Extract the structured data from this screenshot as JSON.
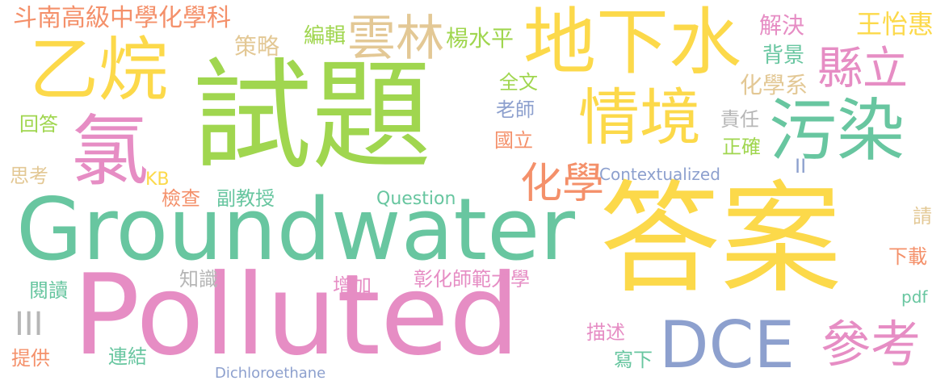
{
  "colors": {
    "green": "#a0d64f",
    "yellow": "#fcd94a",
    "teal": "#68c6a0",
    "pink": "#e68dc4",
    "blue": "#8da0ce",
    "orange": "#f4906a",
    "tan": "#e3c895",
    "gray": "#b6b6b6"
  },
  "words": [
    {
      "id": "w-shiti",
      "text": "試題",
      "color": "green"
    },
    {
      "id": "w-daan",
      "text": "答案",
      "color": "yellow"
    },
    {
      "id": "w-polluted",
      "text": "Polluted",
      "color": "pink"
    },
    {
      "id": "w-groundwater",
      "text": "Groundwater",
      "color": "teal"
    },
    {
      "id": "w-dixiashui",
      "text": "地下水",
      "color": "yellow"
    },
    {
      "id": "w-qingjing",
      "text": "情境",
      "color": "yellow"
    },
    {
      "id": "w-yiwan",
      "text": "乙烷",
      "color": "yellow"
    },
    {
      "id": "w-lu",
      "text": "氯",
      "color": "pink"
    },
    {
      "id": "w-wuran",
      "text": "污染",
      "color": "teal"
    },
    {
      "id": "w-dce",
      "text": "DCE",
      "color": "blue"
    },
    {
      "id": "w-cankao",
      "text": "參考",
      "color": "pink"
    },
    {
      "id": "w-xianli",
      "text": "縣立",
      "color": "pink"
    },
    {
      "id": "w-yunlin",
      "text": "雲林",
      "color": "tan"
    },
    {
      "id": "w-huaxue",
      "text": "化學",
      "color": "orange"
    },
    {
      "id": "w-dounan",
      "text": "斗南高級中學化學科",
      "color": "orange"
    },
    {
      "id": "w-bianji",
      "text": "編輯",
      "color": "green"
    },
    {
      "id": "w-celue",
      "text": "策略",
      "color": "tan"
    },
    {
      "id": "w-yang",
      "text": "楊水平",
      "color": "green"
    },
    {
      "id": "w-jiejue",
      "text": "解決",
      "color": "pink"
    },
    {
      "id": "w-beijing",
      "text": "背景",
      "color": "teal"
    },
    {
      "id": "w-wang",
      "text": "王怡惠",
      "color": "yellow"
    },
    {
      "id": "w-quanwen",
      "text": "全文",
      "color": "green"
    },
    {
      "id": "w-laoshi",
      "text": "老師",
      "color": "blue"
    },
    {
      "id": "w-huaxuexi",
      "text": "化學系",
      "color": "tan"
    },
    {
      "id": "w-guoli",
      "text": "國立",
      "color": "orange"
    },
    {
      "id": "w-zeren",
      "text": "責任",
      "color": "gray"
    },
    {
      "id": "w-zhengque",
      "text": "正確",
      "color": "green"
    },
    {
      "id": "w-huida",
      "text": "回答",
      "color": "green"
    },
    {
      "id": "w-sikao",
      "text": "思考",
      "color": "tan"
    },
    {
      "id": "w-kb",
      "text": "KB",
      "color": "yellow"
    },
    {
      "id": "w-jiancha",
      "text": "檢查",
      "color": "orange"
    },
    {
      "id": "w-fujiaoshou",
      "text": "副教授",
      "color": "teal"
    },
    {
      "id": "w-question",
      "text": "Question",
      "color": "teal"
    },
    {
      "id": "w-contextualized",
      "text": "Contextualized",
      "color": "blue"
    },
    {
      "id": "w-ii",
      "text": "II",
      "color": "blue"
    },
    {
      "id": "w-qing",
      "text": "請",
      "color": "tan"
    },
    {
      "id": "w-xiazai",
      "text": "下載",
      "color": "orange"
    },
    {
      "id": "w-zhishi",
      "text": "知識",
      "color": "gray"
    },
    {
      "id": "w-yuedu",
      "text": "閱讀",
      "color": "teal"
    },
    {
      "id": "w-zengjia",
      "text": "增加",
      "color": "pink"
    },
    {
      "id": "w-zhanghua",
      "text": "彰化師範大學",
      "color": "pink"
    },
    {
      "id": "w-iii",
      "text": "III",
      "color": "gray"
    },
    {
      "id": "w-pdf",
      "text": "pdf",
      "color": "teal"
    },
    {
      "id": "w-miaoshu",
      "text": "描述",
      "color": "pink"
    },
    {
      "id": "w-xiexia",
      "text": "寫下",
      "color": "teal"
    },
    {
      "id": "w-tigong",
      "text": "提供",
      "color": "orange"
    },
    {
      "id": "w-lianjie",
      "text": "連結",
      "color": "teal"
    },
    {
      "id": "w-dichloroethane",
      "text": "Dichloroethane",
      "color": "blue"
    }
  ]
}
